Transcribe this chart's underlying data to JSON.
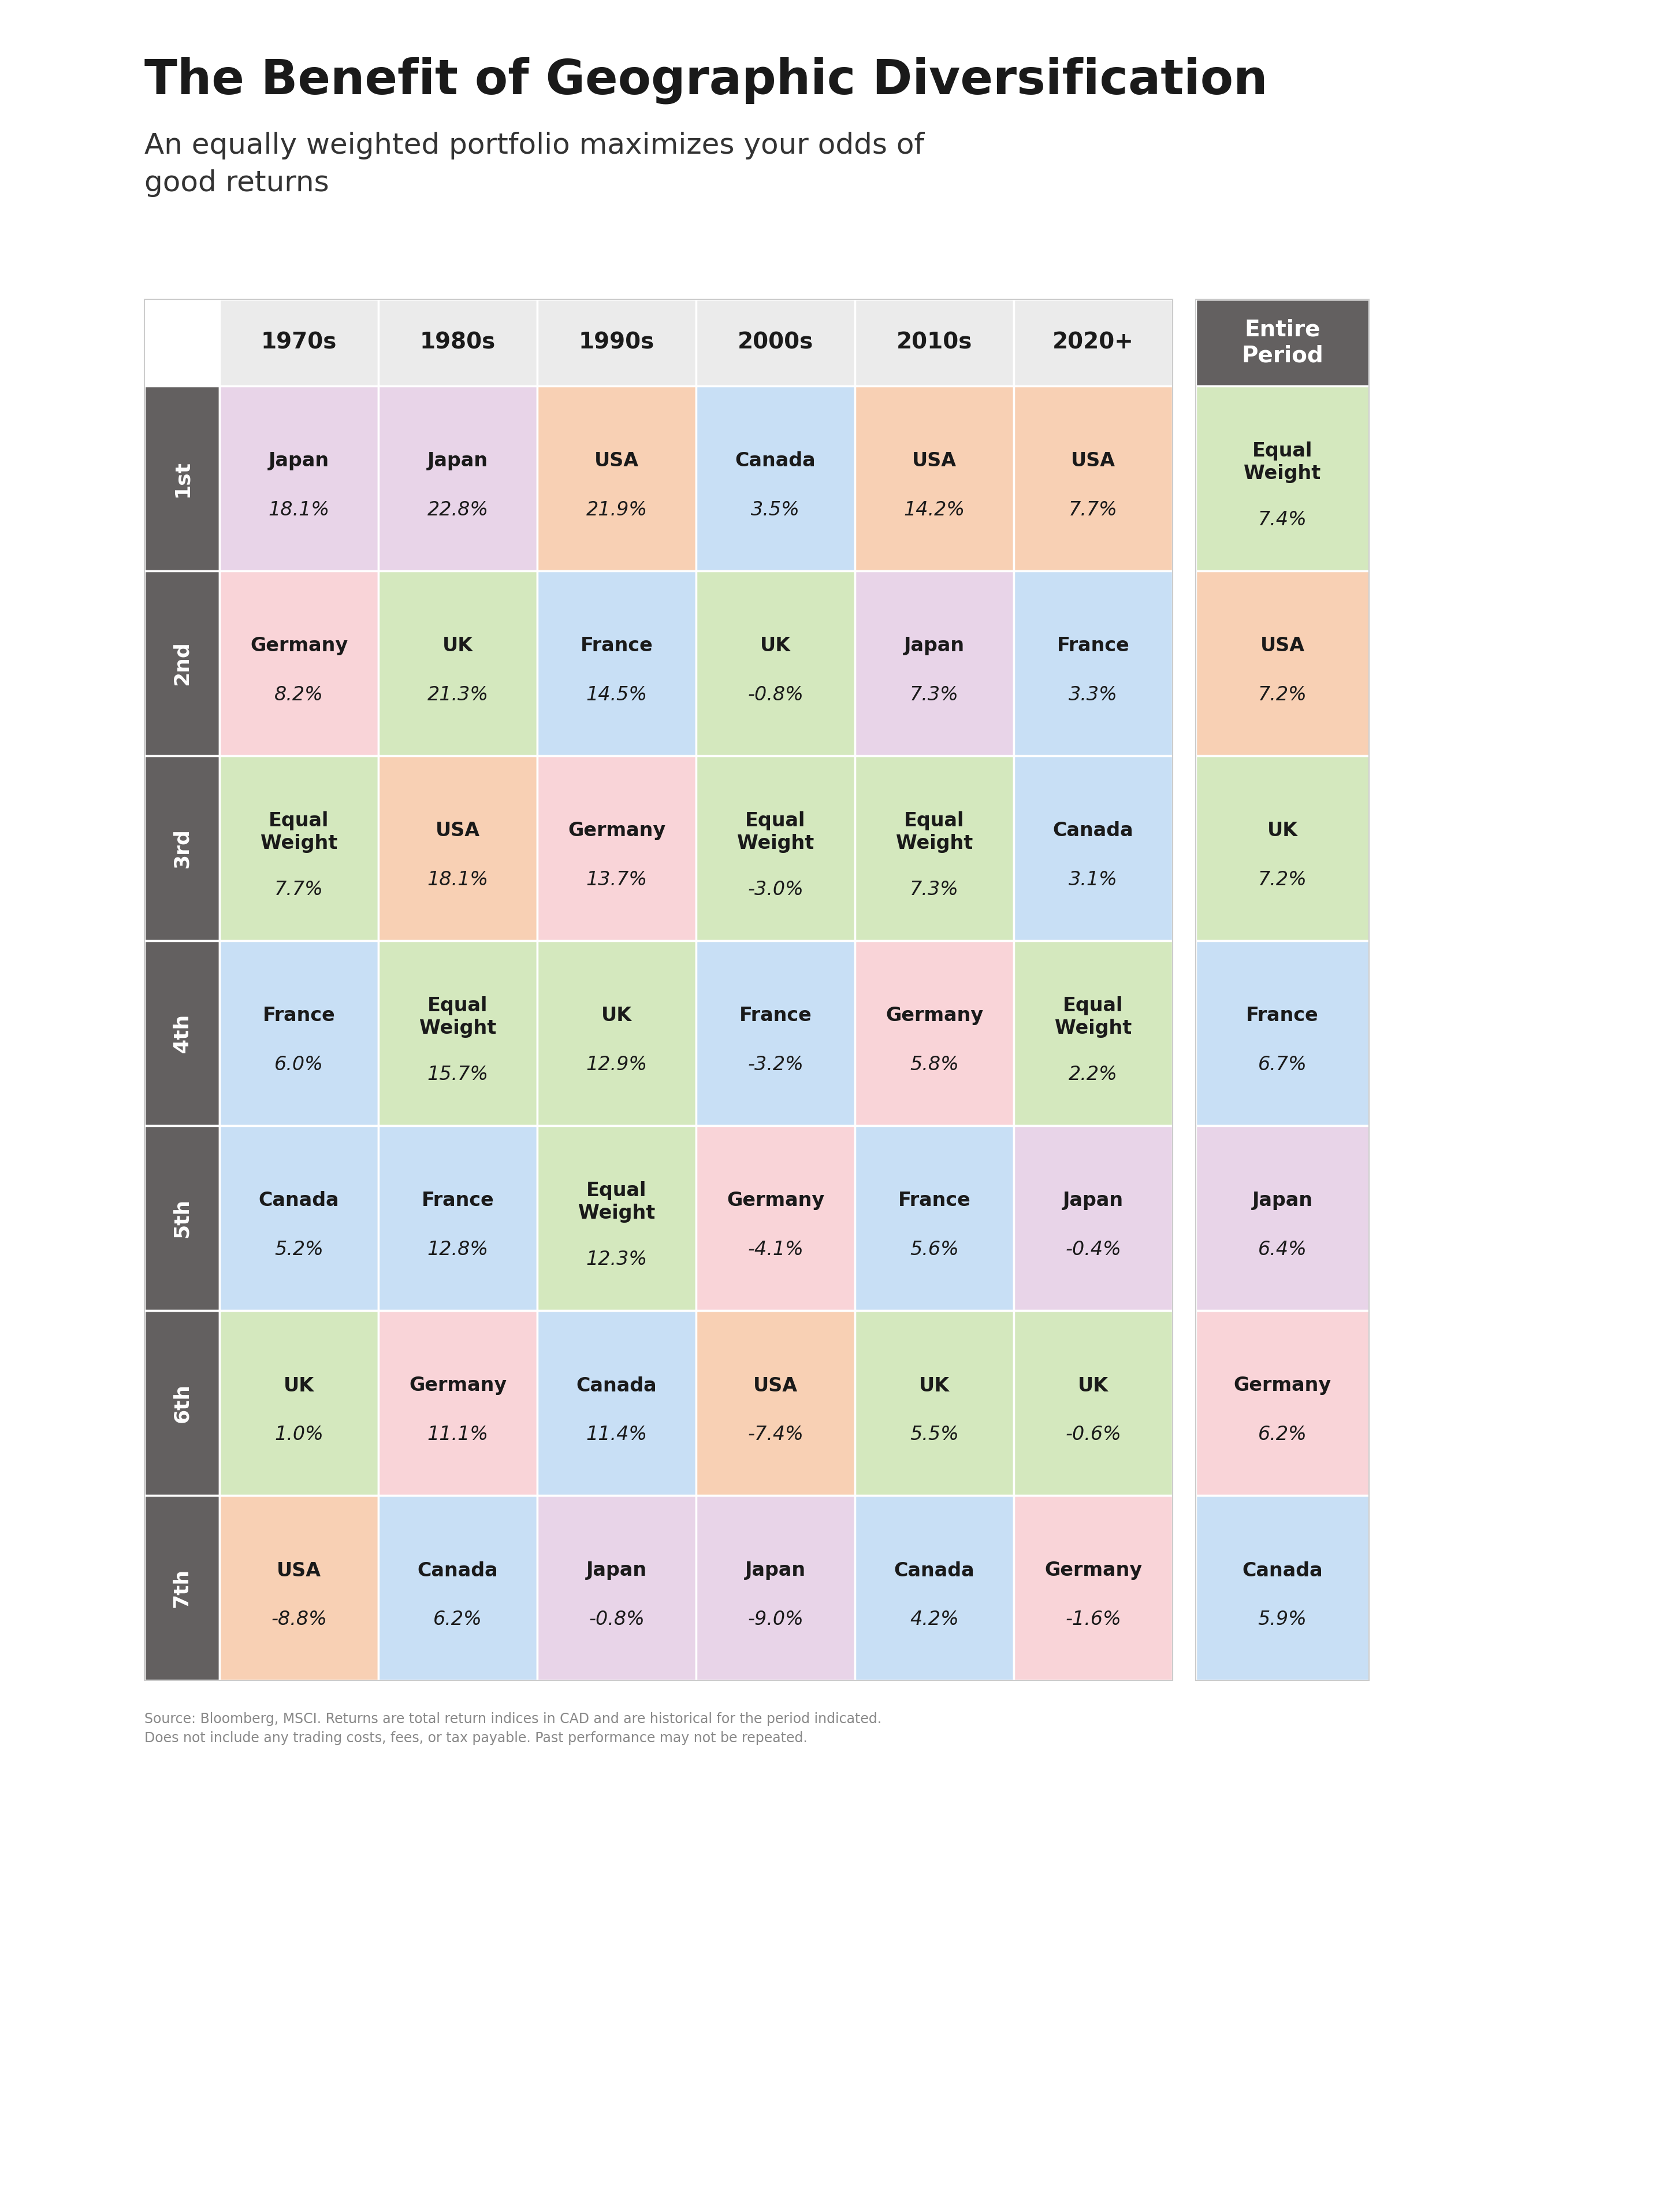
{
  "title": "The Benefit of Geographic Diversification",
  "subtitle": "An equally weighted portfolio maximizes your odds of\ngood returns",
  "footnote": "Source: Bloomberg, MSCI. Returns are total return indices in CAD and are historical for the period indicated.\nDoes not include any trading costs, fees, or tax payable. Past performance may not be repeated.",
  "col_headers": [
    "1970s",
    "1980s",
    "1990s",
    "2000s",
    "2010s",
    "2020+"
  ],
  "entire_period_header": "Entire\nPeriod",
  "row_headers": [
    "1st",
    "2nd",
    "3rd",
    "4th",
    "5th",
    "6th",
    "7th"
  ],
  "table_data": [
    [
      [
        "Japan",
        "18.1%"
      ],
      [
        "Japan",
        "22.8%"
      ],
      [
        "USA",
        "21.9%"
      ],
      [
        "Canada",
        "3.5%"
      ],
      [
        "USA",
        "14.2%"
      ],
      [
        "USA",
        "7.7%"
      ],
      [
        "Equal\nWeight",
        "7.4%"
      ]
    ],
    [
      [
        "Germany",
        "8.2%"
      ],
      [
        "UK",
        "21.3%"
      ],
      [
        "France",
        "14.5%"
      ],
      [
        "UK",
        "-0.8%"
      ],
      [
        "Japan",
        "7.3%"
      ],
      [
        "France",
        "3.3%"
      ],
      [
        "USA",
        "7.2%"
      ]
    ],
    [
      [
        "Equal\nWeight",
        "7.7%"
      ],
      [
        "USA",
        "18.1%"
      ],
      [
        "Germany",
        "13.7%"
      ],
      [
        "Equal\nWeight",
        "-3.0%"
      ],
      [
        "Equal\nWeight",
        "7.3%"
      ],
      [
        "Canada",
        "3.1%"
      ],
      [
        "UK",
        "7.2%"
      ]
    ],
    [
      [
        "France",
        "6.0%"
      ],
      [
        "Equal\nWeight",
        "15.7%"
      ],
      [
        "UK",
        "12.9%"
      ],
      [
        "France",
        "-3.2%"
      ],
      [
        "Germany",
        "5.8%"
      ],
      [
        "Equal\nWeight",
        "2.2%"
      ],
      [
        "France",
        "6.7%"
      ]
    ],
    [
      [
        "Canada",
        "5.2%"
      ],
      [
        "France",
        "12.8%"
      ],
      [
        "Equal\nWeight",
        "12.3%"
      ],
      [
        "Germany",
        "-4.1%"
      ],
      [
        "France",
        "5.6%"
      ],
      [
        "Japan",
        "-0.4%"
      ],
      [
        "Japan",
        "6.4%"
      ]
    ],
    [
      [
        "UK",
        "1.0%"
      ],
      [
        "Germany",
        "11.1%"
      ],
      [
        "Canada",
        "11.4%"
      ],
      [
        "USA",
        "-7.4%"
      ],
      [
        "UK",
        "5.5%"
      ],
      [
        "UK",
        "-0.6%"
      ],
      [
        "Germany",
        "6.2%"
      ]
    ],
    [
      [
        "USA",
        "-8.8%"
      ],
      [
        "Canada",
        "6.2%"
      ],
      [
        "Japan",
        "-0.8%"
      ],
      [
        "Japan",
        "-9.0%"
      ],
      [
        "Canada",
        "4.2%"
      ],
      [
        "Germany",
        "-1.6%"
      ],
      [
        "Canada",
        "5.9%"
      ]
    ]
  ],
  "country_colors": {
    "Japan": "#e8d4e8",
    "Germany": "#f9d4d8",
    "Equal Weight": "#d4e8be",
    "France": "#c8dff5",
    "Canada": "#c8dff5",
    "UK": "#d4e8be",
    "USA": "#f8d0b4"
  },
  "header_bg": "#ebebeb",
  "row_header_bg": "#636060",
  "entire_period_header_bg": "#636060",
  "title_color": "#1a1a1a",
  "subtitle_color": "#333333",
  "footnote_color": "#888888",
  "bg_color": "#ffffff",
  "cell_text_color": "#1a1a1a",
  "row_header_text_color": "#ffffff",
  "border_color": "#cccccc"
}
